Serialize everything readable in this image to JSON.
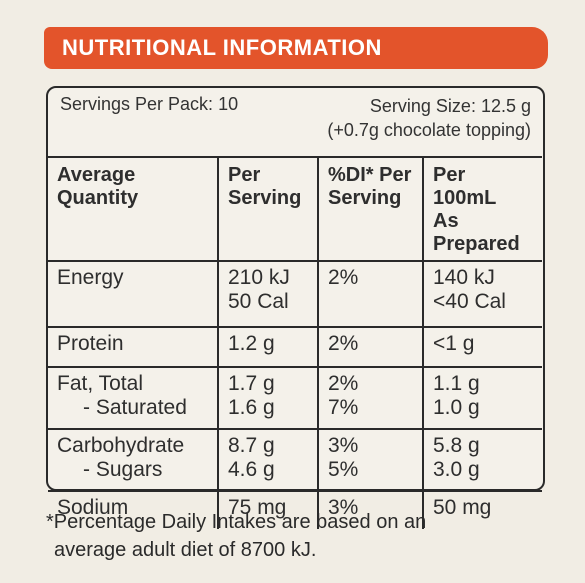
{
  "title": "NUTRITIONAL INFORMATION",
  "servings_per_pack": "Servings Per Pack: 10",
  "serving_size": "Serving Size: 12.5 g",
  "serving_note": "(+0.7g chocolate topping)",
  "headers": {
    "quantity_1": "Average",
    "quantity_2": "Quantity",
    "per_serving_1": "Per",
    "per_serving_2": "Serving",
    "di_1": "%DI* Per",
    "di_2": "Serving",
    "per100_1": "Per 100mL",
    "per100_2": "As Prepared"
  },
  "rows": [
    {
      "name": "Energy",
      "per_serving": "210 kJ",
      "per_serving_2": "50 Cal",
      "di": "2%",
      "per100": "140 kJ",
      "per100_2": "<40 Cal"
    },
    {
      "name": "Protein",
      "per_serving": "1.2 g",
      "di": "2%",
      "per100": "<1 g"
    },
    {
      "name": "Fat, Total",
      "name_2": "- Saturated",
      "per_serving": "1.7 g",
      "per_serving_2": "1.6 g",
      "di": "2%",
      "di_2": "7%",
      "per100": "1.1 g",
      "per100_2": "1.0 g"
    },
    {
      "name": "Carbohydrate",
      "name_2": "- Sugars",
      "per_serving": "8.7 g",
      "per_serving_2": "4.6 g",
      "di": "3%",
      "di_2": "5%",
      "per100": "5.8 g",
      "per100_2": "3.0 g"
    },
    {
      "name": "Sodium",
      "per_serving": "75 mg",
      "di": "3%",
      "per100": "50 mg"
    }
  ],
  "footnote_1": "*Percentage Daily Intakes are based on an",
  "footnote_2": "average adult diet of 8700 kJ.",
  "colors": {
    "banner": "#e3542b",
    "background": "#f1ede4",
    "ink": "#2a2a2a"
  }
}
